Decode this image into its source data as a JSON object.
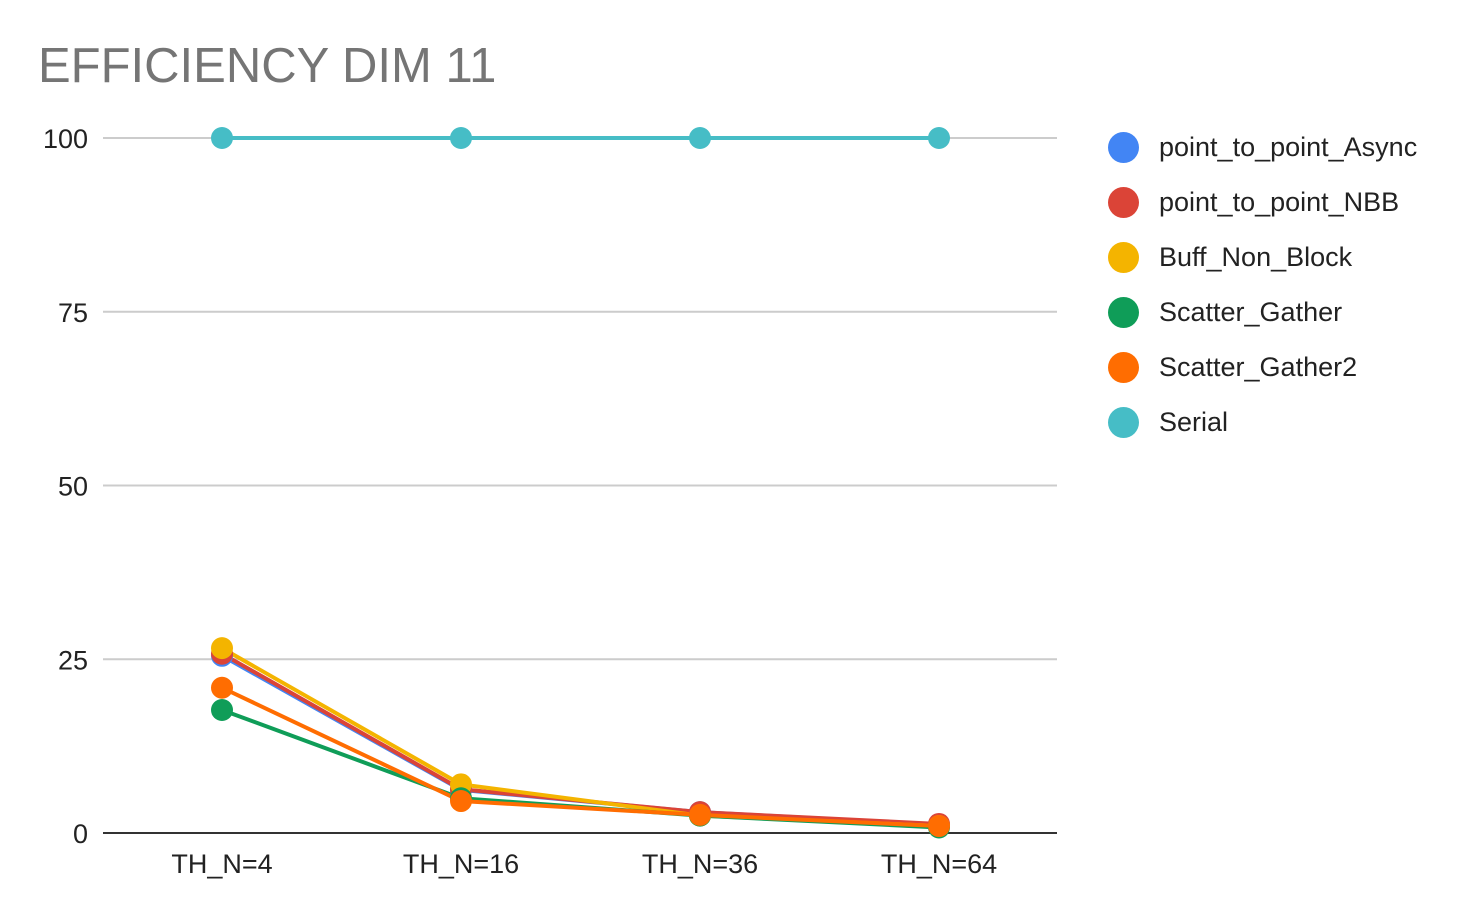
{
  "chart_data": {
    "type": "line",
    "title": "EFFICIENCY DIM 11",
    "xlabel": "",
    "ylabel": "",
    "categories": [
      "TH_N=4",
      "TH_N=16",
      "TH_N=36",
      "TH_N=64"
    ],
    "ylim": [
      0,
      100
    ],
    "yticks": [
      0,
      25,
      50,
      75,
      100
    ],
    "grid": true,
    "legend_position": "right",
    "series": [
      {
        "name": "point_to_point_Async",
        "color": "#4285f4",
        "values": [
          25.5,
          6.2,
          3.0,
          1.2
        ]
      },
      {
        "name": "point_to_point_NBB",
        "color": "#db4437",
        "values": [
          25.8,
          6.3,
          3.0,
          1.3
        ]
      },
      {
        "name": "Buff_Non_Block",
        "color": "#f4b400",
        "values": [
          26.6,
          7.0,
          2.5,
          1.0
        ]
      },
      {
        "name": "Scatter_Gather",
        "color": "#0f9d58",
        "values": [
          17.7,
          5.0,
          2.5,
          0.8
        ]
      },
      {
        "name": "Scatter_Gather2",
        "color": "#ff6d01",
        "values": [
          20.9,
          4.6,
          2.6,
          1.0
        ]
      },
      {
        "name": "Serial",
        "color": "#46bdc6",
        "values": [
          100,
          100,
          100,
          100
        ]
      }
    ]
  }
}
